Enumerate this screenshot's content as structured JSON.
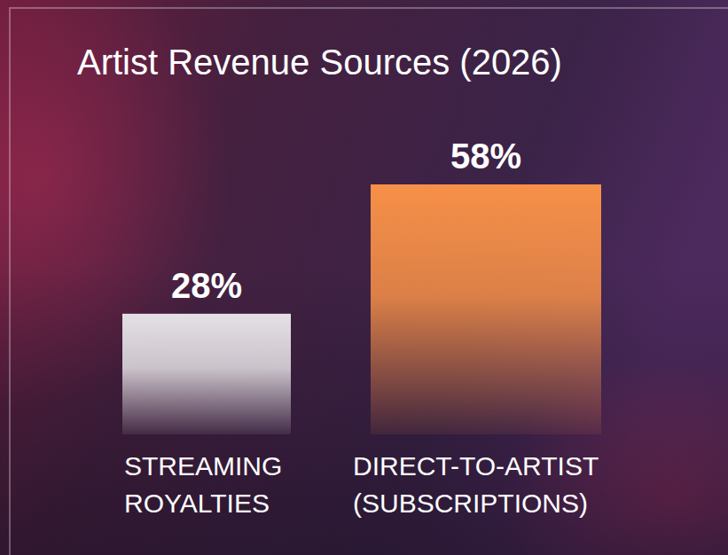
{
  "chart_data": {
    "type": "bar",
    "title": "Artist Revenue Sources (2026)",
    "categories": [
      "STREAMING ROYALTIES",
      "DIRECT-TO-ARTIST (SUBSCRIPTIONS)"
    ],
    "values": [
      28,
      58
    ],
    "value_labels": [
      "28%",
      "58%"
    ],
    "colors": [
      "#e4e0e4",
      "#f79048"
    ],
    "data_labels": true,
    "tick_labels": "x"
  }
}
